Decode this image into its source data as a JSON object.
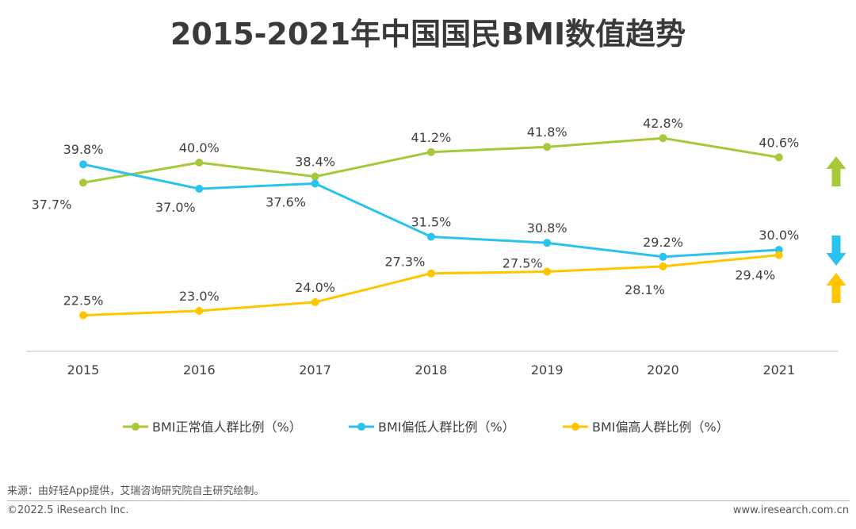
{
  "title": "2015-2021年中国国民BMI数值趋势",
  "source": "来源：由好轻App提供，艾瑞咨询研究院自主研究绘制。",
  "copyright": "©2022.5 iResearch Inc.",
  "website": "www.iresearch.com.cn",
  "colors": {
    "normal": "#a6c93a",
    "low": "#29c3ee",
    "high": "#ffc600",
    "axis": "#bfbfbf",
    "text": "#404040"
  },
  "chart_data": {
    "type": "line",
    "title": "2015-2021年中国国民BMI数值趋势",
    "x": [
      "2015",
      "2016",
      "2017",
      "2018",
      "2019",
      "2020",
      "2021"
    ],
    "ylim": [
      15,
      50
    ],
    "grid": false,
    "legend_position": "bottom",
    "series": [
      {
        "name": "BMI正常值人群比例（%）",
        "color": "#a6c93a",
        "values": [
          37.7,
          40.0,
          38.4,
          41.2,
          41.8,
          42.8,
          40.6
        ],
        "labels": [
          "37.7%",
          "40.0%",
          "38.4%",
          "41.2%",
          "41.8%",
          "42.8%",
          "40.6%"
        ],
        "trend": "up"
      },
      {
        "name": "BMI偏低人群比例（%）",
        "color": "#29c3ee",
        "values": [
          39.8,
          37.0,
          37.6,
          31.5,
          30.8,
          29.2,
          30.0
        ],
        "labels": [
          "39.8%",
          "37.0%",
          "37.6%",
          "31.5%",
          "30.8%",
          "29.2%",
          "30.0%"
        ],
        "trend": "down"
      },
      {
        "name": "BMI偏高人群比例（%）",
        "color": "#ffc600",
        "values": [
          22.5,
          23.0,
          24.0,
          27.3,
          27.5,
          28.1,
          29.4
        ],
        "labels": [
          "22.5%",
          "23.0%",
          "24.0%",
          "27.3%",
          "27.5%",
          "28.1%",
          "29.4%"
        ],
        "trend": "up"
      }
    ]
  }
}
